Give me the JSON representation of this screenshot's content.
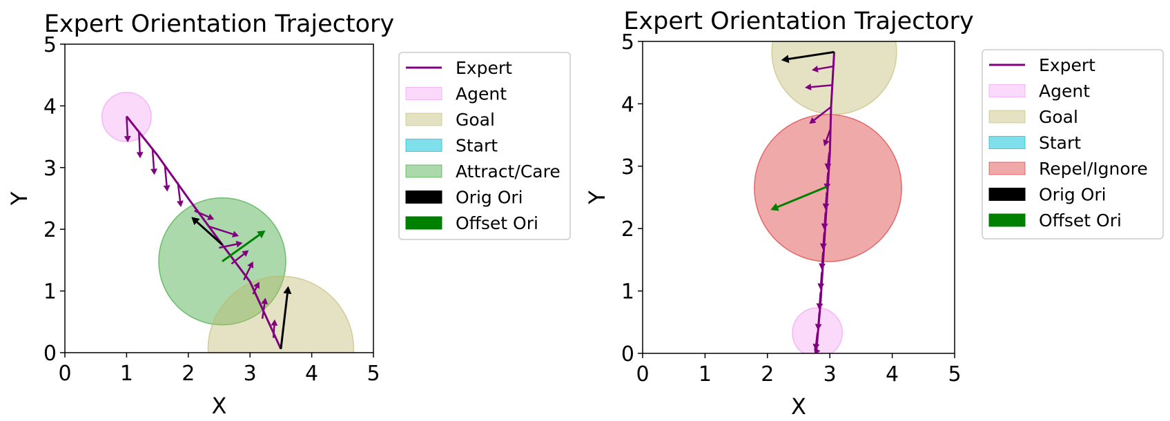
{
  "chart_data": [
    {
      "type": "scatter",
      "title": "Expert Orientation Trajectory",
      "xlabel": "X",
      "ylabel": "Y",
      "xlim": [
        0,
        5
      ],
      "ylim": [
        0,
        5
      ],
      "xticks": [
        "0",
        "1",
        "2",
        "3",
        "4",
        "5"
      ],
      "yticks": [
        "0",
        "1",
        "2",
        "3",
        "4",
        "5"
      ],
      "legend": [
        {
          "label": "Expert",
          "kind": "line",
          "color": "#800080"
        },
        {
          "label": "Agent",
          "kind": "patch",
          "color": "#ee82ee",
          "alpha": 0.3
        },
        {
          "label": "Goal",
          "kind": "patch",
          "color": "#bdb76b",
          "alpha": 0.4
        },
        {
          "label": "Start",
          "kind": "patch",
          "color": "#00bfd8",
          "alpha": 0.5
        },
        {
          "label": "Attract/Care",
          "kind": "patch",
          "color": "#2ca02c",
          "alpha": 0.4
        },
        {
          "label": "Orig Ori",
          "kind": "patch",
          "color": "#000000",
          "alpha": 1
        },
        {
          "label": "Offset Ori",
          "kind": "patch",
          "color": "#008000",
          "alpha": 1
        }
      ],
      "circles": [
        {
          "name": "agent",
          "cx": 1.0,
          "cy": 3.82,
          "r": 0.4,
          "color": "#ee82ee",
          "alpha": 0.3
        },
        {
          "name": "attract",
          "cx": 2.55,
          "cy": 1.48,
          "r": 1.03,
          "color": "#2ca02c",
          "alpha": 0.4
        },
        {
          "name": "goal",
          "cx": 3.5,
          "cy": 0.06,
          "r": 1.18,
          "color": "#bdb76b",
          "alpha": 0.4
        }
      ],
      "trajectory": [
        [
          1.0,
          3.83
        ],
        [
          1.5,
          3.2
        ],
        [
          2.0,
          2.5
        ],
        [
          2.55,
          1.75
        ],
        [
          3.0,
          1.15
        ],
        [
          3.5,
          0.06
        ]
      ],
      "orientation_arrows": [
        {
          "x": 1.0,
          "y": 3.83,
          "dx": 0.02,
          "dy": -0.42
        },
        {
          "x": 1.2,
          "y": 3.57,
          "dx": 0.02,
          "dy": -0.42
        },
        {
          "x": 1.42,
          "y": 3.3,
          "dx": 0.03,
          "dy": -0.42
        },
        {
          "x": 1.62,
          "y": 3.03,
          "dx": 0.04,
          "dy": -0.42
        },
        {
          "x": 1.83,
          "y": 2.76,
          "dx": 0.05,
          "dy": -0.4
        },
        {
          "x": 2.1,
          "y": 2.3,
          "dx": 0.32,
          "dy": -0.14
        },
        {
          "x": 2.32,
          "y": 2.05,
          "dx": 0.5,
          "dy": -0.16
        },
        {
          "x": 2.5,
          "y": 1.7,
          "dx": 0.38,
          "dy": 0.08
        },
        {
          "x": 2.7,
          "y": 1.44,
          "dx": 0.28,
          "dy": 0.22
        },
        {
          "x": 2.9,
          "y": 1.18,
          "dx": 0.15,
          "dy": 0.3
        },
        {
          "x": 3.05,
          "y": 0.95,
          "dx": 0.1,
          "dy": 0.2
        },
        {
          "x": 3.2,
          "y": 0.55,
          "dx": 0.05,
          "dy": 0.34
        },
        {
          "x": 3.38,
          "y": 0.24,
          "dx": 0.02,
          "dy": 0.3
        }
      ],
      "orig_ori": [
        {
          "x": 2.55,
          "y": 1.75,
          "dx": -0.5,
          "dy": 0.45
        },
        {
          "x": 3.5,
          "y": 0.06,
          "dx": 0.12,
          "dy": 1.02
        }
      ],
      "offset_ori": [
        {
          "x": 2.55,
          "y": 1.48,
          "dx": 0.7,
          "dy": 0.5
        }
      ]
    },
    {
      "type": "scatter",
      "title": "Expert Orientation Trajectory",
      "xlabel": "X",
      "ylabel": "Y",
      "xlim": [
        0,
        5
      ],
      "ylim": [
        0,
        5
      ],
      "xticks": [
        "0",
        "1",
        "2",
        "3",
        "4",
        "5"
      ],
      "yticks": [
        "0",
        "1",
        "2",
        "3",
        "4",
        "5"
      ],
      "legend": [
        {
          "label": "Expert",
          "kind": "line",
          "color": "#800080"
        },
        {
          "label": "Agent",
          "kind": "patch",
          "color": "#ee82ee",
          "alpha": 0.3
        },
        {
          "label": "Goal",
          "kind": "patch",
          "color": "#bdb76b",
          "alpha": 0.4
        },
        {
          "label": "Start",
          "kind": "patch",
          "color": "#00bfd8",
          "alpha": 0.5
        },
        {
          "label": "Repel/Ignore",
          "kind": "patch",
          "color": "#d62728",
          "alpha": 0.4
        },
        {
          "label": "Orig Ori",
          "kind": "patch",
          "color": "#000000",
          "alpha": 1
        },
        {
          "label": "Offset Ori",
          "kind": "patch",
          "color": "#008000",
          "alpha": 1
        }
      ],
      "circles": [
        {
          "name": "agent",
          "cx": 2.8,
          "cy": 0.33,
          "r": 0.4,
          "color": "#ee82ee",
          "alpha": 0.3
        },
        {
          "name": "repel",
          "cx": 2.97,
          "cy": 2.65,
          "r": 1.18,
          "color": "#d62728",
          "alpha": 0.4
        },
        {
          "name": "goal",
          "cx": 3.07,
          "cy": 4.83,
          "r": 1.0,
          "color": "#bdb76b",
          "alpha": 0.4
        }
      ],
      "trajectory": [
        [
          2.78,
          0.0
        ],
        [
          2.85,
          0.8
        ],
        [
          2.9,
          1.6
        ],
        [
          2.95,
          2.4
        ],
        [
          3.0,
          3.2
        ],
        [
          3.02,
          3.95
        ],
        [
          3.07,
          4.83
        ]
      ],
      "orientation_arrows": [
        {
          "x": 2.78,
          "y": 0.02,
          "dx": -0.02,
          "dy": -0.05
        },
        {
          "x": 2.8,
          "y": 0.33,
          "dx": -0.03,
          "dy": -0.28
        },
        {
          "x": 2.83,
          "y": 0.65,
          "dx": -0.02,
          "dy": -0.28
        },
        {
          "x": 2.85,
          "y": 0.98,
          "dx": -0.02,
          "dy": -0.28
        },
        {
          "x": 2.87,
          "y": 1.3,
          "dx": -0.02,
          "dy": -0.28
        },
        {
          "x": 2.89,
          "y": 1.62,
          "dx": -0.02,
          "dy": -0.28
        },
        {
          "x": 2.91,
          "y": 1.94,
          "dx": -0.02,
          "dy": -0.28
        },
        {
          "x": 2.93,
          "y": 2.26,
          "dx": -0.02,
          "dy": -0.28
        },
        {
          "x": 2.95,
          "y": 2.58,
          "dx": -0.02,
          "dy": -0.28
        },
        {
          "x": 2.97,
          "y": 2.9,
          "dx": -0.02,
          "dy": -0.28
        },
        {
          "x": 2.99,
          "y": 3.22,
          "dx": -0.03,
          "dy": -0.28
        },
        {
          "x": 3.01,
          "y": 3.6,
          "dx": -0.1,
          "dy": -0.28
        },
        {
          "x": 3.02,
          "y": 3.95,
          "dx": -0.35,
          "dy": -0.27
        },
        {
          "x": 3.05,
          "y": 4.3,
          "dx": -0.45,
          "dy": -0.04
        },
        {
          "x": 3.06,
          "y": 4.6,
          "dx": -0.35,
          "dy": -0.06
        }
      ],
      "orig_ori": [
        {
          "x": 3.07,
          "y": 4.83,
          "dx": -0.85,
          "dy": -0.13
        }
      ],
      "offset_ori": [
        {
          "x": 2.95,
          "y": 2.67,
          "dx": -0.9,
          "dy": -0.37
        }
      ]
    }
  ]
}
